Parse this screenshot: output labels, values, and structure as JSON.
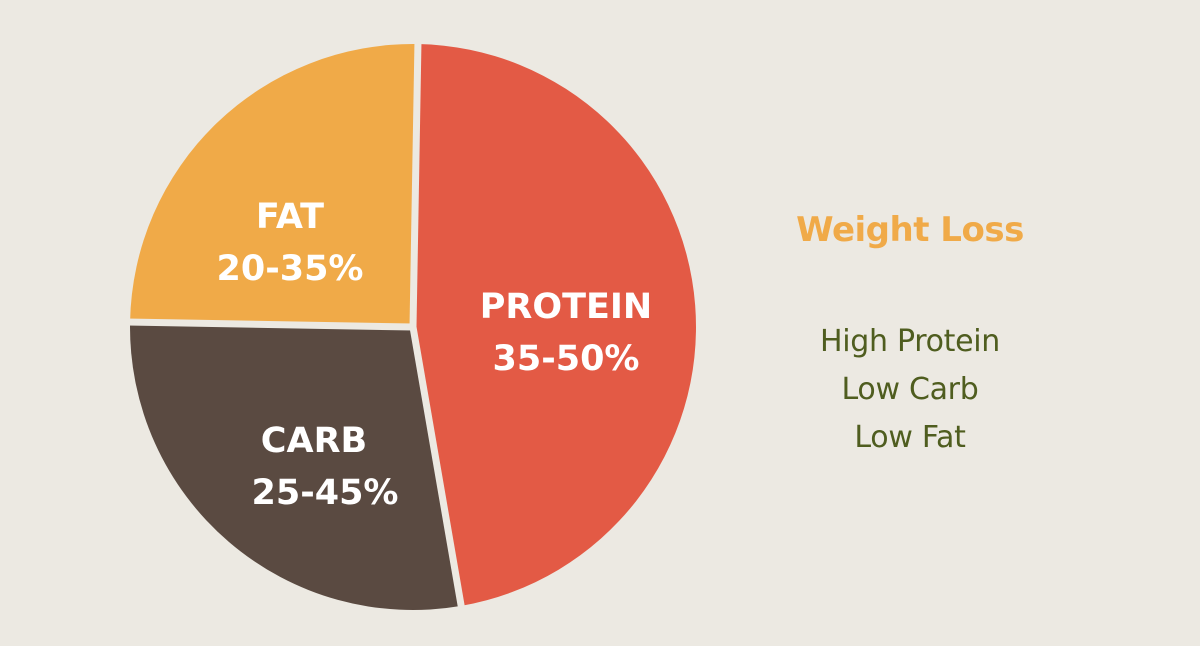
{
  "chart_data": {
    "type": "pie",
    "title": "",
    "slices": [
      {
        "label": "PROTEIN",
        "value_text": "35-50%",
        "value": 47,
        "color": "#e35a45"
      },
      {
        "label": "CARB",
        "value_text": "25-45%",
        "value": 28,
        "color": "#5a4a41"
      },
      {
        "label": "FAT",
        "value_text": "20-35%",
        "value": 25,
        "color": "#f0aa48"
      }
    ]
  },
  "legend_panel": {
    "title": "Weight Loss",
    "title_color": "#f0aa48",
    "items": [
      "High Protein",
      "Low Carb",
      "Low Fat"
    ],
    "items_color": "#4f5d1f"
  }
}
